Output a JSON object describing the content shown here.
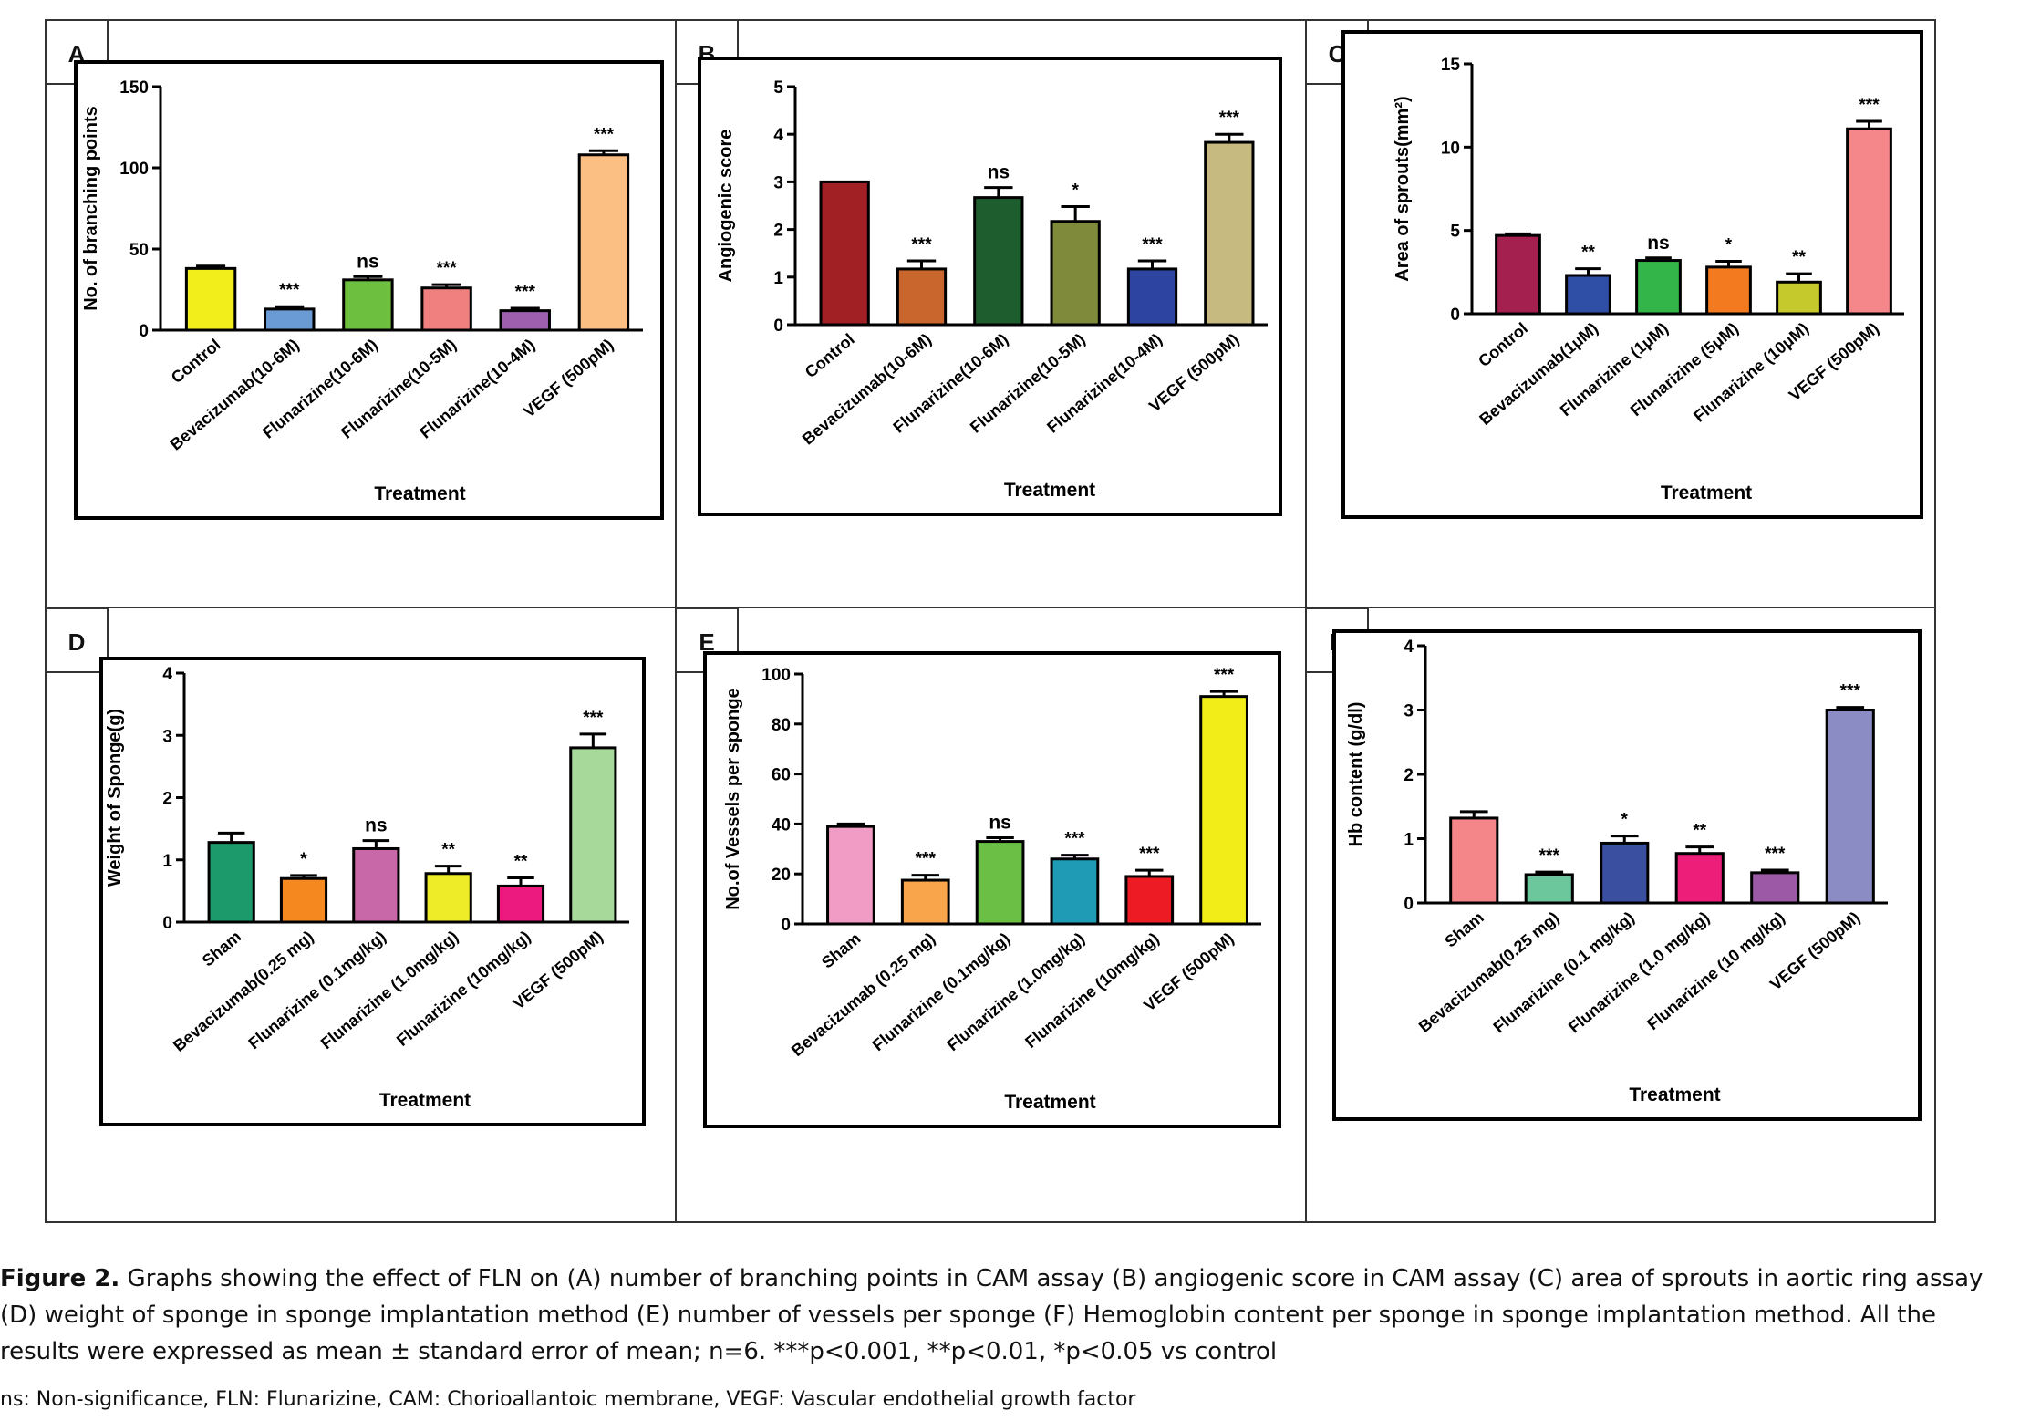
{
  "caption": {
    "label": "Figure 2.",
    "text": "Graphs showing the effect of FLN on (A) number of branching points in CAM assay (B) angiogenic score in CAM assay (C) area of sprouts in aortic ring assay (D) weight of sponge in sponge implantation method (E) number of vessels per sponge (F) Hemoglobin content per sponge in sponge implantation method. All the results were expressed as mean ± standard error of mean; n=6. ***p<0.001, **p<0.01, *p<0.05 vs control",
    "note": "ns: Non-significance, FLN: Flunarizine, CAM: Chorioallantoic membrane, VEGF: Vascular endothelial growth factor"
  },
  "chart_data": [
    {
      "panel": "A",
      "type": "bar",
      "ylabel": "No. of branching points",
      "xlabel": "Treatment",
      "ylim": [
        0,
        150
      ],
      "yticks": [
        "0",
        "50",
        "100",
        "150"
      ],
      "categories": [
        "Control",
        "Bevacizumab(10-6M)",
        "Flunarizine(10-6M)",
        "Flunarizine(10-5M)",
        "Flunarizine(10-4M)",
        "VEGF (500pM)"
      ],
      "values": [
        38,
        13,
        31,
        26,
        12,
        108
      ],
      "errors": [
        1.5,
        1.5,
        2,
        2,
        1.5,
        2.5
      ],
      "significance": [
        "",
        "***",
        "ns",
        "***",
        "***",
        "***"
      ],
      "colors": [
        "#f2ee1c",
        "#6a9bd4",
        "#6cbf3f",
        "#f08080",
        "#9d5fae",
        "#fbbf84"
      ]
    },
    {
      "panel": "B",
      "type": "bar",
      "ylabel": "Angiogenic score",
      "xlabel": "Treatment",
      "ylim": [
        0,
        5
      ],
      "yticks": [
        "0",
        "1",
        "2",
        "3",
        "4",
        "5"
      ],
      "categories": [
        "Control",
        "Bevacizumab(10-6M)",
        "Flunarizine(10-6M)",
        "Flunarizine(10-5M)",
        "Flunarizine(10-4M)",
        "VEGF (500pM)"
      ],
      "values": [
        3.0,
        1.17,
        2.67,
        2.17,
        1.17,
        3.83
      ],
      "errors": [
        0,
        0.17,
        0.21,
        0.31,
        0.17,
        0.17
      ],
      "significance": [
        "",
        "***",
        "ns",
        "*",
        "***",
        "***"
      ],
      "colors": [
        "#a02024",
        "#c8662e",
        "#1e5e2e",
        "#7f8a3a",
        "#2d45a0",
        "#c7ba80"
      ]
    },
    {
      "panel": "C",
      "type": "bar",
      "ylabel": "Area of sprouts(mm²)",
      "xlabel": "Treatment",
      "ylim": [
        0,
        15
      ],
      "yticks": [
        "0",
        "5",
        "10",
        "15"
      ],
      "categories": [
        "Control",
        "Bevacizumab(1μM)",
        "Flunarizine (1μM)",
        "Flunarizine (5μM)",
        "Flunarizine (10μM)",
        "VEGF (500pM)"
      ],
      "values": [
        4.7,
        2.3,
        3.2,
        2.8,
        1.9,
        11.1
      ],
      "errors": [
        0.1,
        0.4,
        0.15,
        0.35,
        0.5,
        0.45
      ],
      "significance": [
        "",
        "**",
        "ns",
        "*",
        "**",
        "***"
      ],
      "colors": [
        "#a3204f",
        "#2f4fa6",
        "#33b54a",
        "#f47a20",
        "#c5c92c",
        "#f5868a"
      ]
    },
    {
      "panel": "D",
      "type": "bar",
      "ylabel": "Weight of Sponge(g)",
      "xlabel": "Treatment",
      "ylim": [
        0,
        4
      ],
      "yticks": [
        "0",
        "1",
        "2",
        "3",
        "4"
      ],
      "categories": [
        "Sham",
        "Bevacizumab(0.25 mg)",
        "Flunarizine (0.1mg/kg)",
        "Flunarizine (1.0mg/kg)",
        "Flunarizine (10mg/kg)",
        "VEGF (500pM)"
      ],
      "values": [
        1.28,
        0.7,
        1.18,
        0.78,
        0.58,
        2.8
      ],
      "errors": [
        0.15,
        0.05,
        0.13,
        0.12,
        0.13,
        0.22
      ],
      "significance": [
        "",
        "*",
        "ns",
        "**",
        "**",
        "***"
      ],
      "colors": [
        "#1d9a6c",
        "#f5881f",
        "#c868a8",
        "#eeec28",
        "#ec1a7e",
        "#a6d99a"
      ]
    },
    {
      "panel": "E",
      "type": "bar",
      "ylabel": "No.of Vessels per sponge",
      "xlabel": "Treatment",
      "ylim": [
        0,
        100
      ],
      "yticks": [
        "0",
        "20",
        "40",
        "60",
        "80",
        "100"
      ],
      "categories": [
        "Sham",
        "Bevacizumab (0.25 mg)",
        "Flunarizine (0.1mg/kg)",
        "Flunarizine (1.0mg/kg)",
        "Flunarizine (10mg/kg)",
        "VEGF (500pM)"
      ],
      "values": [
        39,
        17.5,
        33,
        26,
        19,
        91
      ],
      "errors": [
        1,
        2,
        1.5,
        1.5,
        2.5,
        2
      ],
      "significance": [
        "",
        "***",
        "ns",
        "***",
        "***",
        "***"
      ],
      "colors": [
        "#f19cc4",
        "#f9a54b",
        "#6bbf45",
        "#1f9bb5",
        "#ed1c24",
        "#f2ec18"
      ]
    },
    {
      "panel": "F",
      "type": "bar",
      "ylabel": "Hb content (g/dl)",
      "xlabel": "Treatment",
      "ylim": [
        0,
        4
      ],
      "yticks": [
        "0",
        "1",
        "2",
        "3",
        "4"
      ],
      "categories": [
        "Sham",
        "Bevacizumab(0.25 mg)",
        "Flunarizine (0.1 mg/kg)",
        "Flunarizine (1.0 mg/kg)",
        "Flunarizine (10 mg/kg)",
        "VEGF (500pM)"
      ],
      "values": [
        1.32,
        0.44,
        0.93,
        0.77,
        0.47,
        3.0
      ],
      "errors": [
        0.1,
        0.04,
        0.11,
        0.1,
        0.04,
        0.04
      ],
      "significance": [
        "",
        "***",
        "*",
        "**",
        "***",
        "***"
      ],
      "colors": [
        "#f4868a",
        "#6cc79c",
        "#3b4fa0",
        "#ec1e7a",
        "#9c5aa6",
        "#8b8cc4"
      ]
    }
  ]
}
